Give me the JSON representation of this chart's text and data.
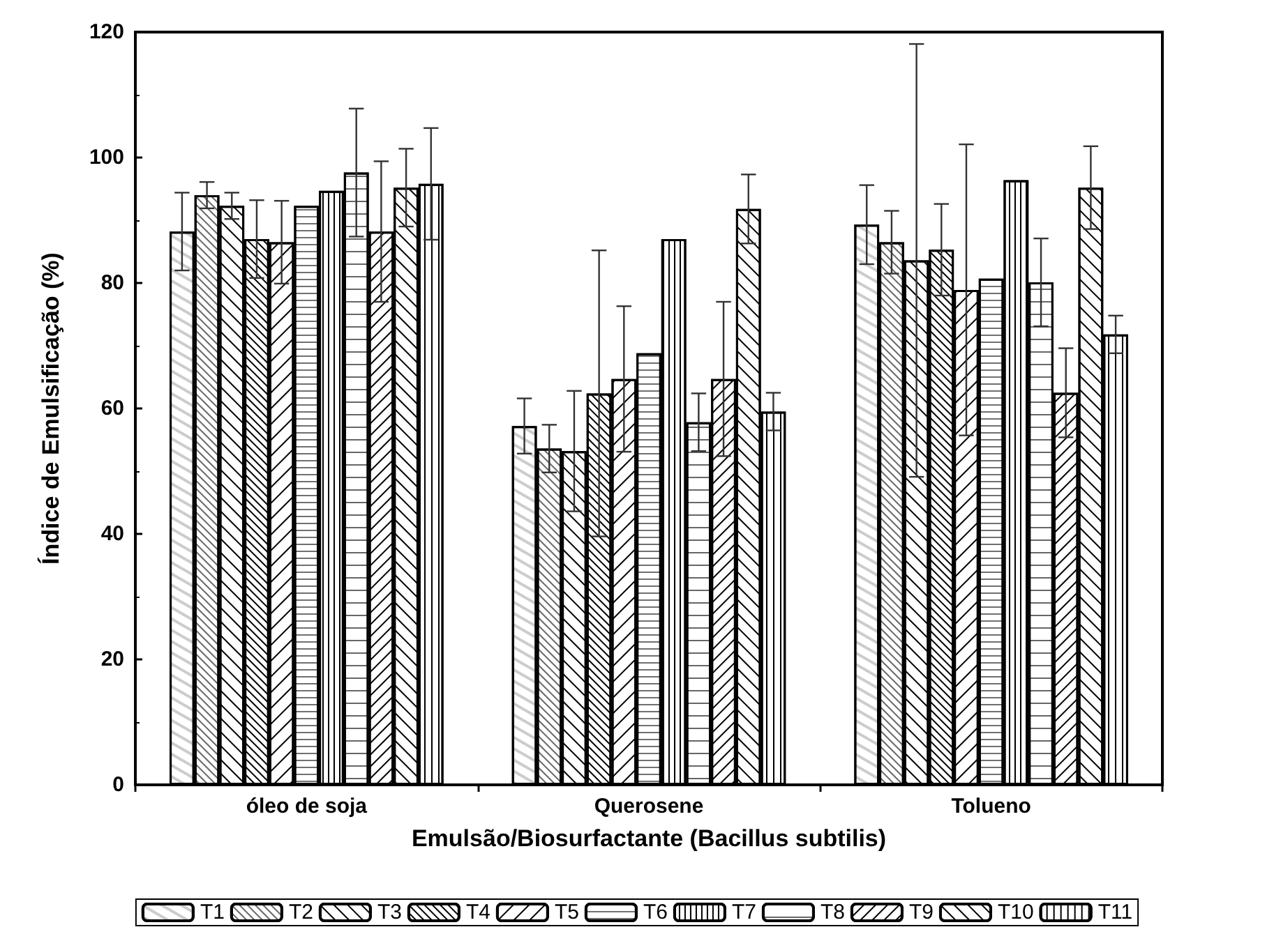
{
  "chart_data": {
    "type": "bar",
    "xlabel": "Emulsão/Biosurfactante (Bacillus subtilis)",
    "ylabel": "Índice de Emulsificação (%)",
    "categories": [
      "óleo de soja",
      "Querosene",
      "Tolueno"
    ],
    "ylim": [
      0,
      120
    ],
    "yticks": [
      0,
      20,
      40,
      60,
      80,
      100,
      120
    ],
    "grid": false,
    "legend": "bottom",
    "series": [
      {
        "name": "T1",
        "color": "#ffffff",
        "values": [
          88.2,
          57.2,
          89.3
        ],
        "errors": [
          6.2,
          4.4,
          6.3
        ]
      },
      {
        "name": "T2",
        "color": "#ffffff",
        "values": [
          94.0,
          53.6,
          86.5
        ],
        "errors": [
          2.1,
          3.8,
          5
        ]
      },
      {
        "name": "T3",
        "color": "#ffffff",
        "values": [
          92.3,
          53.2,
          83.6
        ],
        "errors": [
          2.1,
          9.6,
          34.5
        ]
      },
      {
        "name": "T4",
        "color": "#ffffff",
        "values": [
          87.0,
          62.4,
          85.3
        ],
        "errors": [
          6.2,
          22.8,
          7.3
        ]
      },
      {
        "name": "T5",
        "color": "#ffffff",
        "values": [
          86.5,
          64.7,
          78.9
        ],
        "errors": [
          6.6,
          11.6,
          23.2
        ]
      },
      {
        "name": "T6",
        "color": "#ffffff",
        "values": [
          92.3,
          68.8,
          80.7
        ],
        "errors": [
          null,
          null,
          null
        ]
      },
      {
        "name": "T7",
        "color": "#ffffff",
        "values": [
          94.7,
          87.0,
          96.4
        ],
        "errors": [
          null,
          null,
          null
        ]
      },
      {
        "name": "T8",
        "color": "#ffffff",
        "values": [
          97.6,
          57.8,
          80.1
        ],
        "errors": [
          10.2,
          4.6,
          7
        ]
      },
      {
        "name": "T9",
        "color": "#ffffff",
        "values": [
          88.2,
          64.7,
          62.5
        ],
        "errors": [
          11.2,
          12.3,
          7.1
        ]
      },
      {
        "name": "T10",
        "color": "#ffffff",
        "values": [
          95.2,
          91.8,
          95.2
        ],
        "errors": [
          6.2,
          5.5,
          6.6
        ]
      },
      {
        "name": "T11",
        "color": "#ffffff",
        "values": [
          95.8,
          59.5,
          71.8
        ],
        "errors": [
          8.9,
          3,
          3
        ]
      }
    ]
  }
}
